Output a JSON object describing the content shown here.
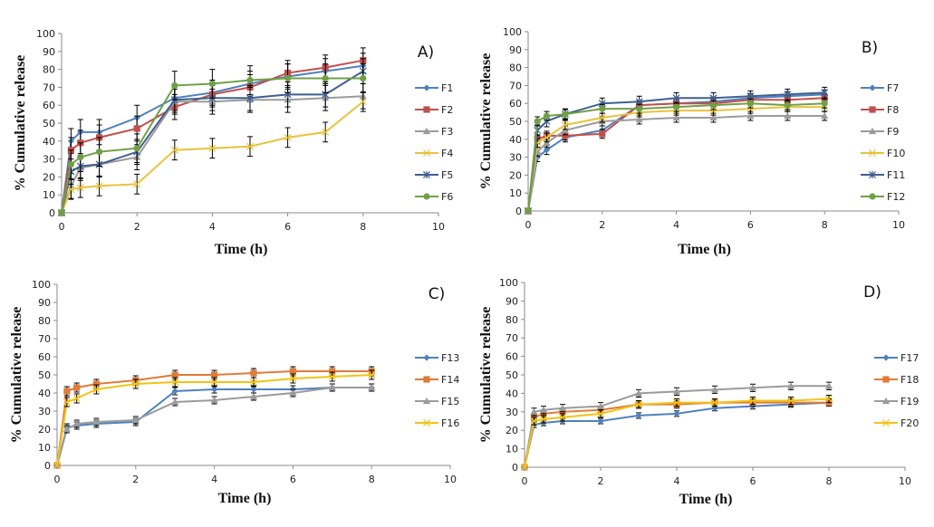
{
  "chart_data": [
    {
      "type": "line",
      "panel_label": "A)",
      "xlabel": "Time (h)",
      "ylabel": "% Cumulative release",
      "xlim": [
        0,
        10
      ],
      "ylim": [
        0,
        100
      ],
      "xticks": [
        0,
        2,
        4,
        6,
        8,
        10
      ],
      "yticks": [
        0,
        10,
        20,
        30,
        40,
        50,
        60,
        70,
        80,
        90,
        100
      ],
      "grid": false,
      "legend_position": "right",
      "x": [
        0,
        0.25,
        0.5,
        1,
        2,
        3,
        4,
        5,
        6,
        7,
        8
      ],
      "series": [
        {
          "name": "F1",
          "color": "#4f81bd",
          "marker": "diamond",
          "values": [
            0,
            40,
            45,
            45,
            53,
            64,
            67,
            72,
            76,
            79,
            82
          ],
          "error": 7
        },
        {
          "name": "F2",
          "color": "#c0504d",
          "marker": "square",
          "values": [
            0,
            35,
            39,
            42,
            47,
            59,
            66,
            70,
            78,
            81,
            85
          ],
          "error": 7
        },
        {
          "name": "F3",
          "color": "#9b9b9b",
          "marker": "triangle",
          "values": [
            0,
            15,
            25,
            27,
            31,
            62,
            62,
            63,
            63,
            64,
            65
          ],
          "error": 7
        },
        {
          "name": "F4",
          "color": "#e8c33e",
          "marker": "x",
          "values": [
            0,
            13,
            14,
            15,
            16,
            35,
            36,
            37,
            42,
            45,
            62
          ],
          "error": 5.5
        },
        {
          "name": "F5",
          "color": "#3f5f8f",
          "marker": "star",
          "values": [
            0,
            23,
            26,
            27,
            34,
            63,
            64,
            64,
            66,
            66,
            79
          ],
          "error": 7
        },
        {
          "name": "F6",
          "color": "#70a046",
          "marker": "circle",
          "values": [
            0,
            27,
            31,
            34,
            36,
            71,
            72,
            74,
            75,
            75,
            75
          ],
          "error": 8
        }
      ]
    },
    {
      "type": "line",
      "panel_label": "B)",
      "xlabel": "Time (h)",
      "ylabel": "% Cumulative release",
      "xlim": [
        0,
        10
      ],
      "ylim": [
        0,
        100
      ],
      "xticks": [
        0,
        2,
        4,
        6,
        8,
        10
      ],
      "yticks": [
        0,
        10,
        20,
        30,
        40,
        50,
        60,
        70,
        80,
        90,
        100
      ],
      "grid": false,
      "legend_position": "right",
      "x": [
        0,
        0.25,
        0.5,
        1,
        2,
        3,
        4,
        5,
        6,
        7,
        8
      ],
      "series": [
        {
          "name": "F7",
          "color": "#4f81bd",
          "marker": "diamond",
          "values": [
            0,
            30,
            34,
            41,
            45,
            59,
            60,
            61,
            63,
            64,
            65
          ],
          "error": 2.5
        },
        {
          "name": "F8",
          "color": "#c0504d",
          "marker": "square",
          "values": [
            0,
            40,
            42,
            42,
            43,
            59,
            60,
            60,
            62,
            62,
            63
          ],
          "error": 2.5
        },
        {
          "name": "F9",
          "color": "#9b9b9b",
          "marker": "triangle",
          "values": [
            0,
            33,
            38,
            45,
            50,
            51,
            52,
            52,
            53,
            53,
            53
          ],
          "error": 2.5
        },
        {
          "name": "F10",
          "color": "#e8c33e",
          "marker": "x",
          "values": [
            0,
            38,
            41,
            48,
            52,
            55,
            56,
            56,
            57,
            58,
            58
          ],
          "error": 2.5
        },
        {
          "name": "F11",
          "color": "#3f5f8f",
          "marker": "star",
          "values": [
            0,
            45,
            50,
            54,
            60,
            61,
            63,
            63,
            64,
            65,
            66
          ],
          "error": 3
        },
        {
          "name": "F12",
          "color": "#70a046",
          "marker": "circle",
          "values": [
            0,
            50,
            53,
            54,
            57,
            57,
            58,
            59,
            60,
            59,
            60
          ],
          "error": 2.5
        }
      ]
    },
    {
      "type": "line",
      "panel_label": "C)",
      "xlabel": "Time (h)",
      "ylabel": "% Cumulative release",
      "xlim": [
        0,
        10
      ],
      "ylim": [
        0,
        100
      ],
      "xticks": [
        0,
        2,
        4,
        6,
        8,
        10
      ],
      "yticks": [
        0,
        10,
        20,
        30,
        40,
        50,
        60,
        70,
        80,
        90,
        100
      ],
      "grid": false,
      "legend_position": "right",
      "x": [
        0,
        0.25,
        0.5,
        1,
        2,
        3,
        4,
        5,
        6,
        7,
        8
      ],
      "series": [
        {
          "name": "F13",
          "color": "#4f81bd",
          "marker": "diamond",
          "values": [
            0,
            21,
            22,
            23,
            24,
            41,
            42,
            42,
            42,
            43,
            43
          ],
          "error": 2
        },
        {
          "name": "F14",
          "color": "#e07b39",
          "marker": "square",
          "values": [
            0,
            41,
            43,
            45,
            47,
            50,
            50,
            51,
            52,
            52,
            52
          ],
          "error": 2.5
        },
        {
          "name": "F15",
          "color": "#9b9b9b",
          "marker": "triangle",
          "values": [
            0,
            20,
            23,
            24,
            25,
            35,
            36,
            38,
            40,
            43,
            43
          ],
          "error": 2
        },
        {
          "name": "F16",
          "color": "#f2c314",
          "marker": "x",
          "values": [
            0,
            35,
            37,
            42,
            45,
            46,
            46,
            46,
            48,
            49,
            50
          ],
          "error": 2.5
        }
      ]
    },
    {
      "type": "line",
      "panel_label": "D)",
      "xlabel": "Time (h)",
      "ylabel": "% Cumulative release",
      "xlim": [
        0,
        10
      ],
      "ylim": [
        0,
        100
      ],
      "xticks": [
        0,
        2,
        4,
        6,
        8,
        10
      ],
      "yticks": [
        0,
        10,
        20,
        30,
        40,
        50,
        60,
        70,
        80,
        90,
        100
      ],
      "grid": false,
      "legend_position": "right",
      "x": [
        0,
        0.25,
        0.5,
        1,
        2,
        3,
        4,
        5,
        6,
        7,
        8
      ],
      "series": [
        {
          "name": "F17",
          "color": "#4f81bd",
          "marker": "diamond",
          "values": [
            0,
            23,
            24,
            25,
            25,
            28,
            29,
            32,
            33,
            34,
            35
          ],
          "error": 1.5
        },
        {
          "name": "F18",
          "color": "#e07b39",
          "marker": "square",
          "values": [
            0,
            27,
            29,
            30,
            31,
            34,
            34,
            35,
            35,
            35,
            35
          ],
          "error": 2
        },
        {
          "name": "F19",
          "color": "#9b9b9b",
          "marker": "triangle",
          "values": [
            0,
            30,
            31,
            32,
            33,
            40,
            41,
            42,
            43,
            44,
            44
          ],
          "error": 2
        },
        {
          "name": "F20",
          "color": "#f2c314",
          "marker": "x",
          "values": [
            0,
            25,
            26,
            27,
            29,
            34,
            35,
            35,
            36,
            36,
            37
          ],
          "error": 2
        }
      ]
    }
  ]
}
